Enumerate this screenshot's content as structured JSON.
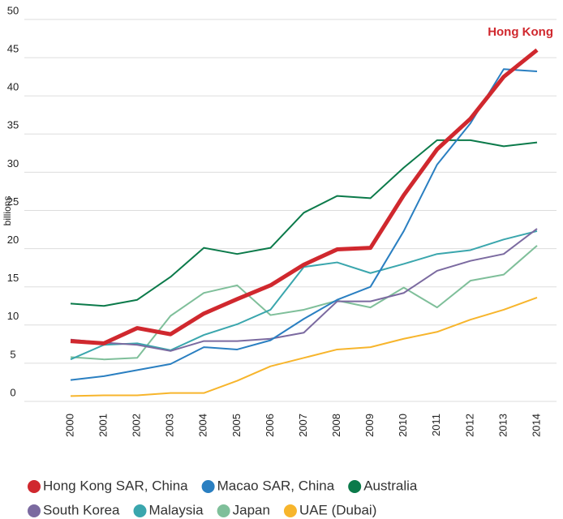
{
  "chart_data": {
    "type": "line",
    "ylabel": "billions",
    "annotation": "Hong Kong",
    "x": [
      "2000",
      "2001",
      "2002",
      "2003",
      "2004",
      "2005",
      "2006",
      "2007",
      "2008",
      "2009",
      "2010",
      "2011",
      "2012",
      "2013",
      "2014"
    ],
    "ylim": [
      0,
      50
    ],
    "yticks": [
      0,
      5,
      10,
      15,
      20,
      25,
      30,
      35,
      40,
      45,
      50
    ],
    "grid": true,
    "series": [
      {
        "name": "Hong Kong SAR, China",
        "color": "#d0282e",
        "values": [
          7.9,
          7.6,
          9.6,
          8.8,
          11.5,
          13.4,
          15.2,
          17.9,
          19.9,
          20.1,
          27.0,
          33.0,
          37.0,
          42.5,
          46.0
        ]
      },
      {
        "name": "Macao SAR, China",
        "color": "#2a7fc1",
        "values": [
          2.8,
          3.3,
          4.1,
          4.9,
          7.1,
          6.8,
          8.0,
          10.8,
          13.3,
          15.0,
          22.3,
          31.0,
          36.4,
          43.5,
          43.2
        ]
      },
      {
        "name": "Australia",
        "color": "#0b7a4a",
        "values": [
          12.8,
          12.5,
          13.3,
          16.3,
          20.1,
          19.3,
          20.1,
          24.7,
          26.9,
          26.6,
          30.6,
          34.2,
          34.2,
          33.4,
          33.9
        ]
      },
      {
        "name": "South Korea",
        "color": "#7b6aa0",
        "values": [
          8.1,
          7.7,
          7.4,
          6.6,
          7.9,
          7.9,
          8.2,
          9.0,
          13.1,
          13.1,
          14.2,
          17.1,
          18.4,
          19.3,
          22.6
        ]
      },
      {
        "name": "Malaysia",
        "color": "#3aa6ad",
        "values": [
          5.5,
          7.4,
          7.6,
          6.7,
          8.7,
          10.1,
          12.0,
          17.6,
          18.2,
          16.8,
          18.0,
          19.3,
          19.8,
          21.2,
          22.3
        ]
      },
      {
        "name": "Japan",
        "color": "#7fbf9a",
        "values": [
          5.8,
          5.5,
          5.7,
          11.2,
          14.2,
          15.2,
          11.3,
          12.0,
          13.2,
          12.3,
          14.9,
          12.3,
          15.8,
          16.6,
          20.4
        ]
      },
      {
        "name": "UAE (Dubai)",
        "color": "#f7b52c",
        "values": [
          0.7,
          0.8,
          0.8,
          1.1,
          1.1,
          2.7,
          4.6,
          5.7,
          6.8,
          7.1,
          8.2,
          9.1,
          10.7,
          12.0,
          13.6
        ]
      }
    ]
  }
}
